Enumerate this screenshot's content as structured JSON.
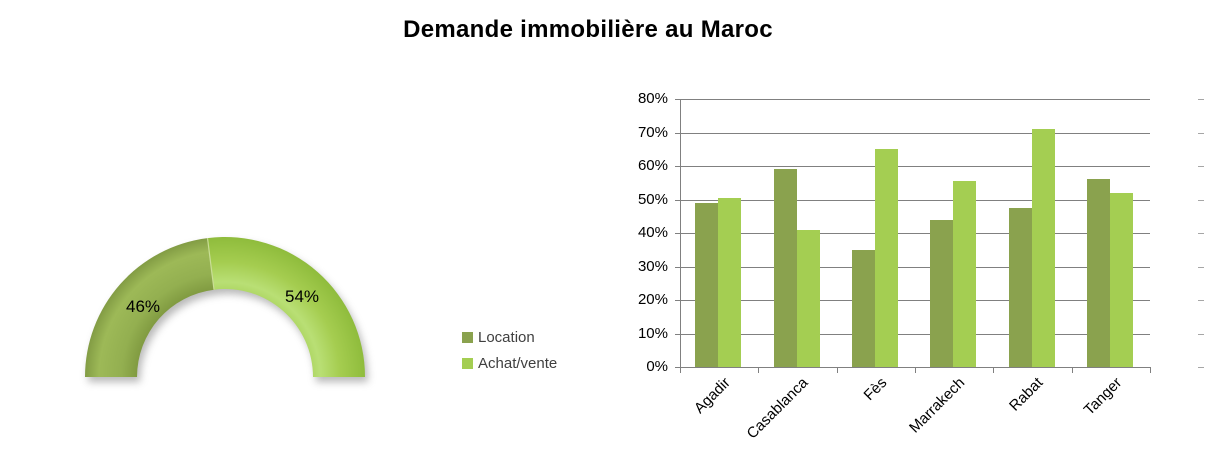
{
  "title": "Demande immobilière au Maroc",
  "colors": {
    "location": "#8AA24E",
    "achat_vente": "#A4CE52",
    "gridline": "#808080",
    "axis": "#808080",
    "text": "#000000",
    "legend_text": "#3F3F3F"
  },
  "legend": {
    "items": [
      {
        "label": "Location",
        "color": "#8AA24E"
      },
      {
        "label": "Achat/vente",
        "color": "#A4CE52"
      }
    ]
  },
  "chart_data": [
    {
      "type": "pie",
      "subtype": "half-doughnut",
      "slices": [
        {
          "name": "Location",
          "value": 46,
          "label": "46%",
          "color": "#8CA94A"
        },
        {
          "name": "Achat/vente",
          "value": 54,
          "label": "54%",
          "color": "#A2CC4F"
        }
      ],
      "start_angle_deg": 180,
      "end_angle_deg": 0
    },
    {
      "type": "bar",
      "categories": [
        "Agadir",
        "Casablanca",
        "Fès",
        "Marrakech",
        "Rabat",
        "Tanger"
      ],
      "series": [
        {
          "name": "Location",
          "color": "#8AA24E",
          "values": [
            49,
            59,
            35,
            44,
            47.5,
            56
          ]
        },
        {
          "name": "Achat/vente",
          "color": "#A4CE52",
          "values": [
            50.5,
            41,
            65,
            55.5,
            71,
            52
          ]
        }
      ],
      "title": "",
      "xlabel": "",
      "ylabel": "",
      "ylim": [
        0,
        80
      ],
      "ytick_step": 10,
      "ytick_labels": [
        "0%",
        "10%",
        "20%",
        "30%",
        "40%",
        "50%",
        "60%",
        "70%",
        "80%"
      ],
      "grid": true,
      "legend_position": "left-of-plot"
    }
  ]
}
